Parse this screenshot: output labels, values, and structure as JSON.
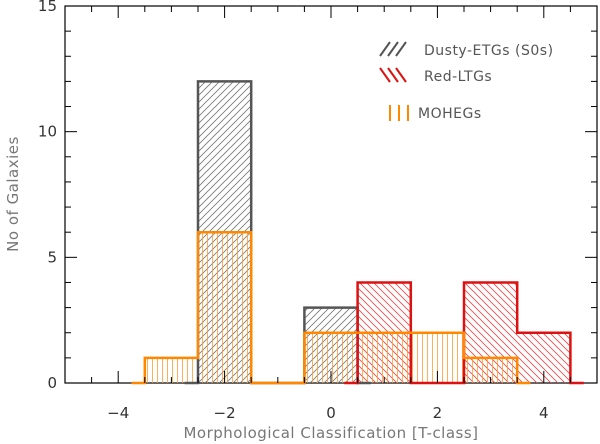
{
  "chart_data": {
    "type": "histogram",
    "xlabel": "Morphological Classification [T-class]",
    "ylabel": "No of Galaxies",
    "xlim": [
      -5,
      5
    ],
    "ylim": [
      0,
      15
    ],
    "x_ticks": [
      -4,
      -2,
      0,
      2,
      4
    ],
    "y_ticks": [
      0,
      5,
      10,
      15
    ],
    "legend_position": "top-right",
    "series": [
      {
        "name": "Dusty-ETGs (S0s)",
        "color": "#555555",
        "hatch": "forward-diagonal",
        "bins": [
          {
            "x0": -2.5,
            "x1": -1.5,
            "count": 12
          },
          {
            "x0": -0.5,
            "x1": 0.5,
            "count": 3
          }
        ]
      },
      {
        "name": "Red-LTGs",
        "color": "#dd1111",
        "hatch": "backward-diagonal",
        "bins": [
          {
            "x0": 0.5,
            "x1": 1.5,
            "count": 4
          },
          {
            "x0": 2.5,
            "x1": 3.5,
            "count": 4
          },
          {
            "x0": 3.5,
            "x1": 4.5,
            "count": 2
          }
        ]
      },
      {
        "name": "MOHEGs",
        "color": "#ff8800",
        "hatch": "vertical",
        "bins": [
          {
            "x0": -3.5,
            "x1": -2.5,
            "count": 1
          },
          {
            "x0": -2.5,
            "x1": -1.5,
            "count": 6
          },
          {
            "x0": -0.5,
            "x1": 0.5,
            "count": 2
          },
          {
            "x0": 0.5,
            "x1": 1.5,
            "count": 2
          },
          {
            "x0": 1.5,
            "x1": 2.5,
            "count": 2
          },
          {
            "x0": 2.5,
            "x1": 3.5,
            "count": 1
          }
        ]
      }
    ]
  }
}
